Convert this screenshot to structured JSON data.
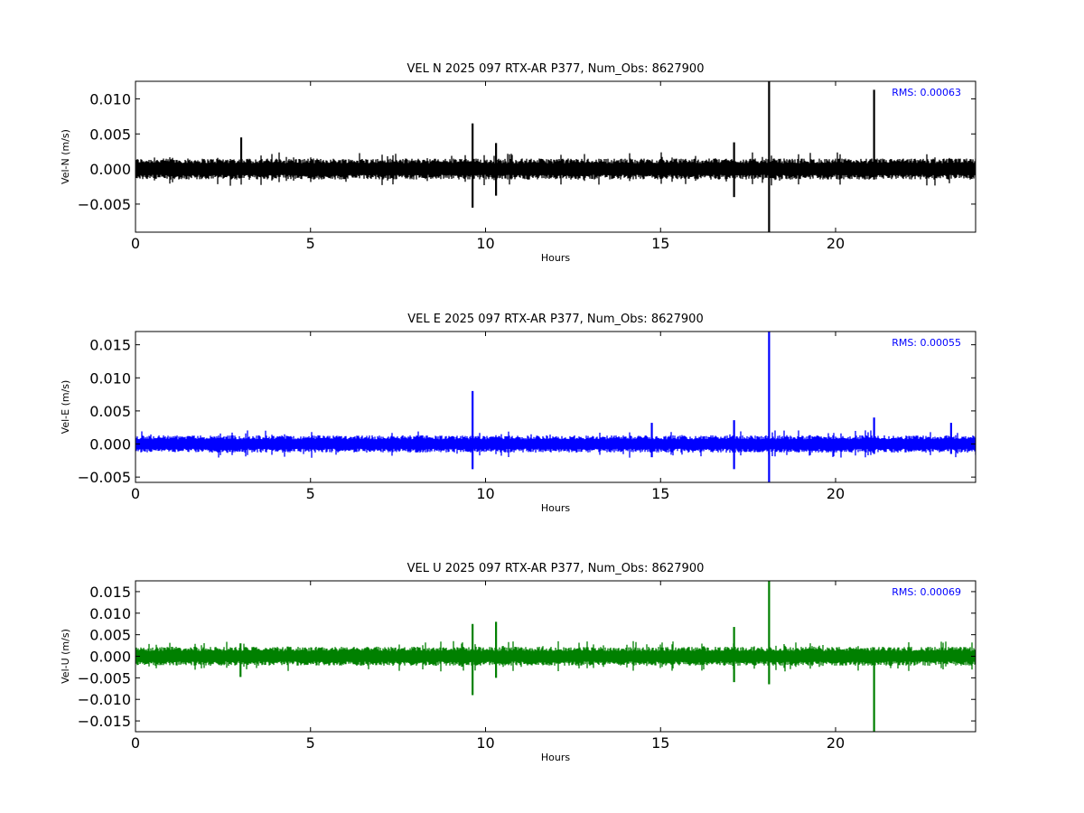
{
  "chart_data": [
    {
      "type": "line",
      "title": "VEL N 2025 097 RTX-AR  P377, Num_Obs: 8627900",
      "xlabel": "Hours",
      "ylabel": "Vel-N (m/s)",
      "xlim": [
        0,
        24
      ],
      "ylim": [
        -0.009,
        0.0125
      ],
      "xticks": [
        0,
        5,
        10,
        15,
        20
      ],
      "xtick_labels": [
        "0",
        "5",
        "10",
        "15",
        "20"
      ],
      "yticks": [
        -0.005,
        0.0,
        0.005,
        0.01
      ],
      "ytick_labels": [
        "−0.005",
        "0.000",
        "0.005",
        "0.010"
      ],
      "color": "#000000",
      "annotation": "RMS:  0.00063",
      "noise_amplitude": 0.0015,
      "spikes": [
        {
          "x": 3.02,
          "min": -0.001,
          "max": 0.0045
        },
        {
          "x": 9.63,
          "min": -0.0055,
          "max": 0.0065
        },
        {
          "x": 10.3,
          "min": -0.0038,
          "max": 0.0037
        },
        {
          "x": 17.1,
          "min": -0.004,
          "max": 0.0038
        },
        {
          "x": 18.1,
          "min": -0.009,
          "max": 0.0125
        },
        {
          "x": 21.1,
          "min": -0.0015,
          "max": 0.0113
        }
      ]
    },
    {
      "type": "line",
      "title": "VEL E 2025 097 RTX-AR  P377, Num_Obs: 8627900",
      "xlabel": "Hours",
      "ylabel": "Vel-E (m/s)",
      "xlim": [
        0,
        24
      ],
      "ylim": [
        -0.0058,
        0.017
      ],
      "xticks": [
        0,
        5,
        10,
        15,
        20
      ],
      "xtick_labels": [
        "0",
        "5",
        "10",
        "15",
        "20"
      ],
      "yticks": [
        -0.005,
        0.0,
        0.005,
        0.01,
        0.015
      ],
      "ytick_labels": [
        "−0.005",
        "0.000",
        "0.005",
        "0.010",
        "0.015"
      ],
      "color": "#0000ff",
      "annotation": "RMS:  0.00055",
      "noise_amplitude": 0.0013,
      "spikes": [
        {
          "x": 9.63,
          "min": -0.0038,
          "max": 0.008
        },
        {
          "x": 14.75,
          "min": -0.002,
          "max": 0.0032
        },
        {
          "x": 17.1,
          "min": -0.0038,
          "max": 0.0036
        },
        {
          "x": 18.1,
          "min": -0.0058,
          "max": 0.017
        },
        {
          "x": 21.1,
          "min": -0.0015,
          "max": 0.004
        },
        {
          "x": 23.3,
          "min": -0.0015,
          "max": 0.0032
        }
      ]
    },
    {
      "type": "line",
      "title": "VEL U 2025 097 RTX-AR  P377, Num_Obs: 8627900",
      "xlabel": "Hours",
      "ylabel": "Vel-U (m/s)",
      "xlim": [
        0,
        24
      ],
      "ylim": [
        -0.0175,
        0.0175
      ],
      "xticks": [
        0,
        5,
        10,
        15,
        20
      ],
      "xtick_labels": [
        "0",
        "5",
        "10",
        "15",
        "20"
      ],
      "yticks": [
        -0.015,
        -0.01,
        -0.005,
        0.0,
        0.005,
        0.01,
        0.015
      ],
      "ytick_labels": [
        "−0.015",
        "−0.010",
        "−0.005",
        "0.000",
        "0.005",
        "0.010",
        "0.015"
      ],
      "color": "#008000",
      "annotation": "RMS:  0.00069",
      "noise_amplitude": 0.0022,
      "spikes": [
        {
          "x": 3.0,
          "min": -0.0048,
          "max": 0.003
        },
        {
          "x": 9.63,
          "min": -0.009,
          "max": 0.0075
        },
        {
          "x": 10.3,
          "min": -0.005,
          "max": 0.008
        },
        {
          "x": 17.1,
          "min": -0.006,
          "max": 0.0068
        },
        {
          "x": 18.1,
          "min": -0.0065,
          "max": 0.0175
        },
        {
          "x": 21.1,
          "min": -0.0175,
          "max": 0.0015
        }
      ]
    }
  ]
}
